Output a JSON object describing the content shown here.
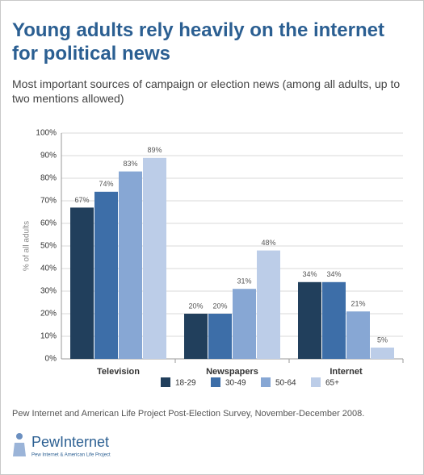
{
  "chart_data": {
    "type": "bar",
    "title": "Young adults rely heavily on the internet for political news",
    "subtitle": "Most important sources of campaign or election news (among all adults, up to two mentions allowed)",
    "y_label": "% of all adults",
    "categories": [
      "Television",
      "Newspapers",
      "Internet"
    ],
    "series": [
      {
        "name": "18-29",
        "color": "#213f5c",
        "values": [
          67,
          20,
          34
        ],
        "value_labels": [
          "67%",
          "20%",
          "34%"
        ]
      },
      {
        "name": "30-49",
        "color": "#3d6ea8",
        "values": [
          74,
          20,
          34
        ],
        "value_labels": [
          "74%",
          "20%",
          "34%"
        ]
      },
      {
        "name": "50-64",
        "color": "#87a7d4",
        "values": [
          83,
          31,
          21
        ],
        "value_labels": [
          "83%",
          "31%",
          "21%"
        ]
      },
      {
        "name": "65+",
        "color": "#bccde8",
        "values": [
          89,
          48,
          5
        ],
        "value_labels": [
          "89%",
          "48%",
          "5%"
        ]
      }
    ],
    "ylim": [
      0,
      100
    ],
    "yticks": [
      {
        "value": 0,
        "label": "0%"
      },
      {
        "value": 10,
        "label": "10%"
      },
      {
        "value": 20,
        "label": "20%"
      },
      {
        "value": 30,
        "label": "30%"
      },
      {
        "value": 40,
        "label": "40%"
      },
      {
        "value": 50,
        "label": "50%"
      },
      {
        "value": 60,
        "label": "60%"
      },
      {
        "value": 70,
        "label": "70%"
      },
      {
        "value": 80,
        "label": "80%"
      },
      {
        "value": 90,
        "label": "90%"
      },
      {
        "value": 100,
        "label": "100%"
      }
    ],
    "grid": true,
    "source": "Pew Internet and American Life Project Post-Election Survey, November-December 2008."
  },
  "logo": {
    "name": "PewInternet",
    "tagline": "Pew Internet & American Life Project"
  }
}
